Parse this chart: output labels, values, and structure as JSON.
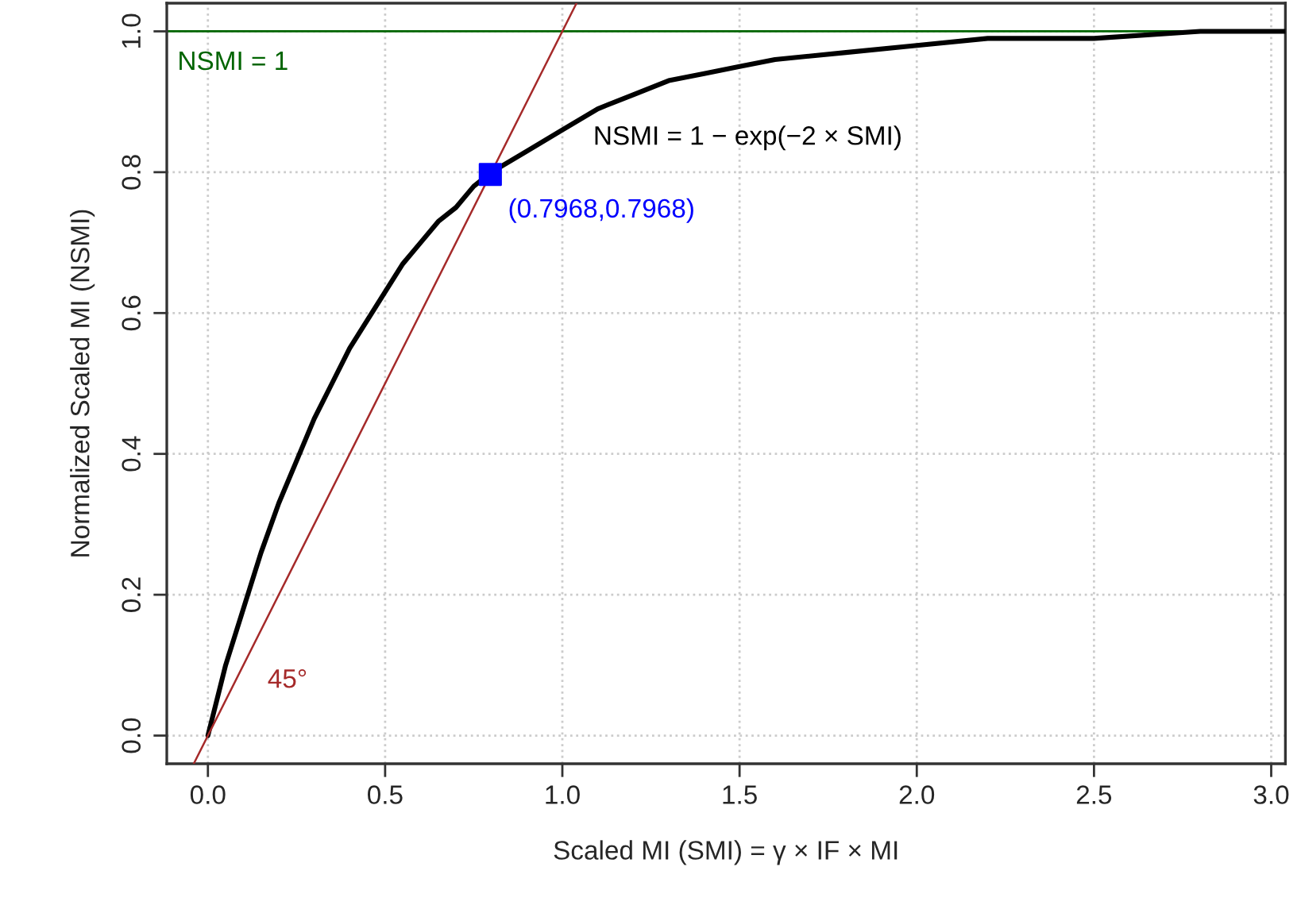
{
  "chart_data": {
    "type": "line",
    "xlabel": "Scaled MI (SMI) = γ × IF × MI",
    "ylabel": "Normalized Scaled MI (NSMI)",
    "xlim": [
      -0.116,
      3.04
    ],
    "ylim": [
      -0.04,
      1.04
    ],
    "xticks": [
      {
        "value": 0,
        "label": "0.0"
      },
      0.5,
      {
        "value": 1,
        "label": "1.0"
      },
      1.5,
      {
        "value": 2,
        "label": "2.0"
      },
      2.5,
      {
        "value": 3,
        "label": "3.0"
      }
    ],
    "yticks": [
      {
        "value": 0,
        "label": "0.0"
      },
      0.2,
      0.4,
      0.6,
      0.8,
      {
        "value": 1,
        "label": "1.0"
      }
    ],
    "grid": true,
    "series": [
      {
        "color": "#000000",
        "x": [
          0,
          0.025,
          0.05,
          0.075,
          0.1,
          0.15,
          0.2,
          0.25,
          0.3,
          0.35,
          0.4,
          0.45,
          0.5,
          0.55,
          0.6,
          0.65,
          0.7,
          0.75,
          0.8,
          0.9,
          1.0,
          1.1,
          1.2,
          1.3,
          1.4,
          1.5,
          1.6,
          1.8,
          2.0,
          2.2,
          2.5,
          2.8,
          3.04
        ],
        "values": [
          0,
          0.05,
          0.1,
          0.14,
          0.18,
          0.26,
          0.33,
          0.39,
          0.45,
          0.5,
          0.55,
          0.59,
          0.63,
          0.67,
          0.7,
          0.73,
          0.75,
          0.78,
          0.8,
          0.83,
          0.86,
          0.89,
          0.91,
          0.93,
          0.94,
          0.95,
          0.96,
          0.97,
          0.98,
          0.99,
          0.99,
          1.0,
          1.0
        ]
      },
      {
        "color": "#a52a2a",
        "x": [
          -0.04,
          1.04
        ],
        "values": [
          -0.04,
          1.04
        ]
      },
      {
        "type": "scatter",
        "color": "#0000ff",
        "marker": "square",
        "x": [
          0.7968
        ],
        "values": [
          0.7968
        ]
      }
    ],
    "ref_lines": [
      {
        "axis": "y",
        "value": 1,
        "label": "NSMI = 1",
        "color": "#006400"
      }
    ],
    "annotations": [
      {
        "text": "NSMI = 1 − exp(−2 × SMI)",
        "x": 1.0,
        "y": 0.85
      },
      {
        "text": "(0.7968,0.7968)",
        "x": 0.7968,
        "y": 0.7968
      },
      "45°"
    ]
  }
}
